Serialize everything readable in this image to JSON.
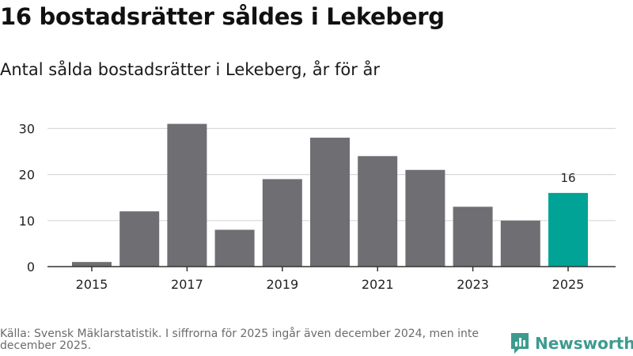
{
  "header": {
    "title": "16 bostadsrätter såldes i Lekeberg",
    "subtitle": "Antal sålda bostadsrätter i Lekeberg, år för år"
  },
  "footer": {
    "source": "Källa: Svensk Mäklarstatistik. I siffrorna för 2025 ingår även december 2024, men inte december 2025.",
    "brand": "Newsworthy"
  },
  "colors": {
    "bar": "#6f6e73",
    "highlight": "#00a396",
    "grid": "#d9d9d9",
    "axis": "#333333"
  },
  "chart_data": {
    "type": "bar",
    "title": "Antal sålda bostadsrätter i Lekeberg, år för år",
    "xlabel": "",
    "ylabel": "",
    "categories": [
      "2015",
      "2016",
      "2017",
      "2018",
      "2019",
      "2020",
      "2021",
      "2022",
      "2023",
      "2024",
      "2025"
    ],
    "values": [
      1,
      12,
      31,
      8,
      19,
      28,
      24,
      21,
      13,
      10,
      16
    ],
    "highlight_index": 10,
    "data_labels": [
      {
        "index": 10,
        "text": "16"
      }
    ],
    "x_tick_labels": [
      "2015",
      "2017",
      "2019",
      "2021",
      "2023",
      "2025"
    ],
    "y_ticks": [
      0,
      10,
      20,
      30
    ],
    "ylim": [
      0,
      32
    ],
    "grid": true
  }
}
